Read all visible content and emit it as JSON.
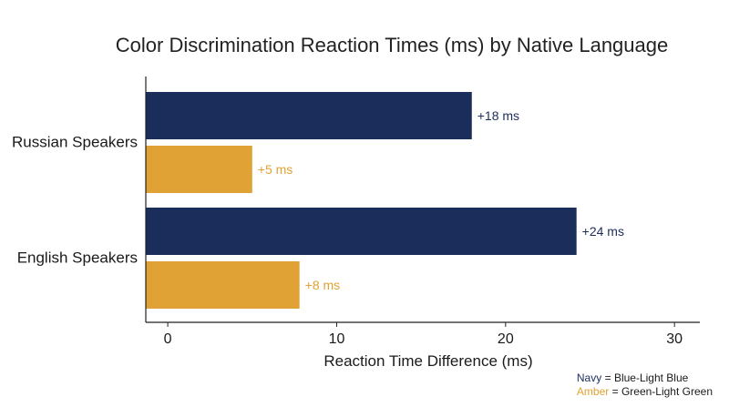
{
  "chart_data": {
    "type": "bar",
    "orientation": "horizontal",
    "title": "Color Discrimination Reaction Times (ms) by Native Language",
    "xlabel": "Reaction Time Difference (ms)",
    "ylabel": "",
    "xlim": [
      -1.3,
      31.5
    ],
    "xticks": [
      0,
      10,
      20,
      30
    ],
    "categories": [
      "Russian Speakers",
      "English Speakers"
    ],
    "series": [
      {
        "key": "navy",
        "color": "#1b2d5b",
        "values": [
          18,
          24.2
        ],
        "labels": [
          "+18 ms",
          "+24 ms"
        ]
      },
      {
        "key": "amber",
        "color": "#e0a234",
        "values": [
          5,
          7.8
        ],
        "labels": [
          "+5 ms",
          "+8 ms"
        ]
      }
    ],
    "legend": {
      "position": "bottom-right",
      "items": [
        {
          "key": "Navy",
          "eq": "=",
          "desc": "Blue-Light Blue",
          "color": "#1b2d5b"
        },
        {
          "key": "Amber",
          "eq": "=",
          "desc": "Green-Light Green",
          "color": "#e0a234"
        }
      ]
    },
    "grid": false
  }
}
